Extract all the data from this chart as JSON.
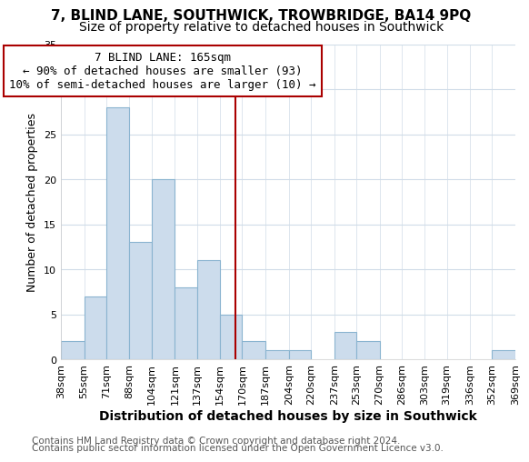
{
  "title1": "7, BLIND LANE, SOUTHWICK, TROWBRIDGE, BA14 9PQ",
  "title2": "Size of property relative to detached houses in Southwick",
  "xlabel": "Distribution of detached houses by size in Southwick",
  "ylabel": "Number of detached properties",
  "bin_edges": [
    38,
    55,
    71,
    88,
    104,
    121,
    137,
    154,
    170,
    187,
    204,
    220,
    237,
    253,
    270,
    286,
    303,
    319,
    336,
    352,
    369
  ],
  "bar_heights": [
    2,
    7,
    28,
    13,
    20,
    8,
    11,
    5,
    2,
    1,
    1,
    0,
    3,
    2,
    0,
    0,
    0,
    0,
    0,
    1
  ],
  "bar_color": "#ccdcec",
  "bar_edgecolor": "#8ab4d0",
  "vline_x": 165,
  "vline_color": "#aa0000",
  "annotation_title": "7 BLIND LANE: 165sqm",
  "annotation_line1": "← 90% of detached houses are smaller (93)",
  "annotation_line2": "10% of semi-detached houses are larger (10) →",
  "annotation_box_facecolor": "#ffffff",
  "annotation_box_edgecolor": "#aa0000",
  "ylim": [
    0,
    35
  ],
  "yticks": [
    0,
    5,
    10,
    15,
    20,
    25,
    30,
    35
  ],
  "footer1": "Contains HM Land Registry data © Crown copyright and database right 2024.",
  "footer2": "Contains public sector information licensed under the Open Government Licence v3.0.",
  "plot_bg_color": "#ffffff",
  "fig_bg_color": "#ffffff",
  "title1_fontsize": 11,
  "title2_fontsize": 10,
  "xlabel_fontsize": 10,
  "ylabel_fontsize": 9,
  "tick_fontsize": 8,
  "annotation_fontsize": 9,
  "footer_fontsize": 7.5,
  "grid_color": "#d0dce8"
}
